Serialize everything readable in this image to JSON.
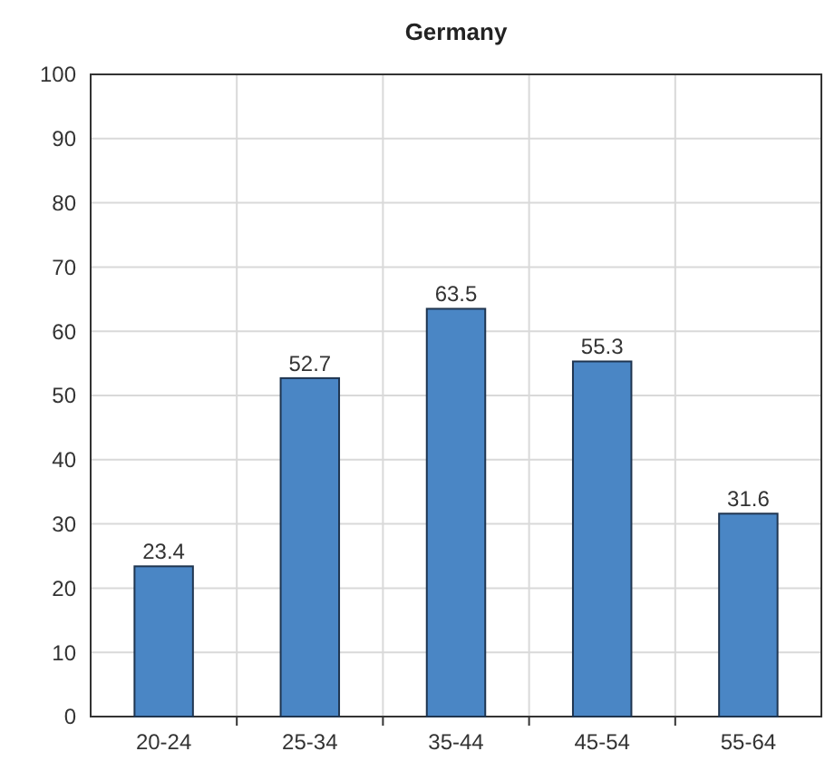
{
  "chart_data": {
    "type": "bar",
    "title": "Germany",
    "categories": [
      "20-24",
      "25-34",
      "35-44",
      "45-54",
      "55-64"
    ],
    "values": [
      23.4,
      52.7,
      63.5,
      55.3,
      31.6
    ],
    "color": "#4a86c5",
    "ylim": [
      0,
      100
    ],
    "yticks": [
      0,
      10,
      20,
      30,
      40,
      50,
      60,
      70,
      80,
      90,
      100
    ],
    "grid": true,
    "data_labels": true
  }
}
